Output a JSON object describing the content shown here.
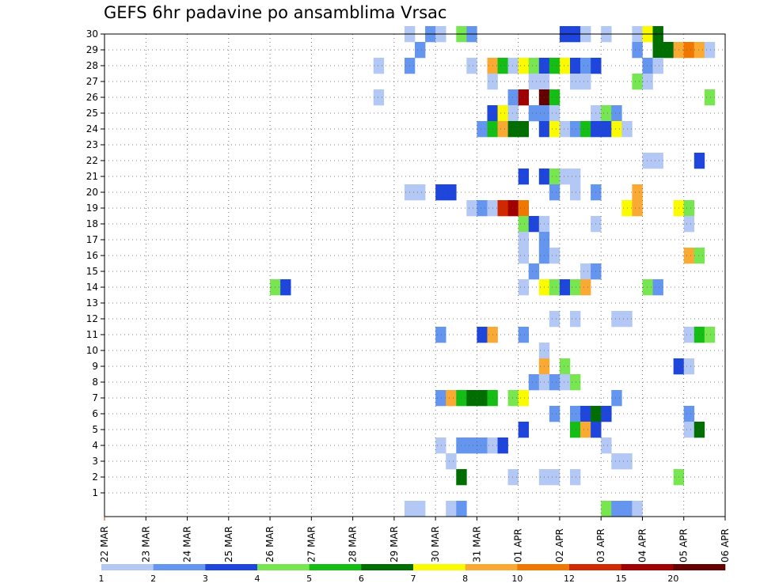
{
  "chart_data": {
    "type": "heatmap",
    "title": "GEFS 6hr padavine po ansamblima Vrsac",
    "y_ticks": [
      "1",
      "2",
      "3",
      "4",
      "5",
      "6",
      "7",
      "8",
      "9",
      "10",
      "11",
      "12",
      "13",
      "14",
      "15",
      "16",
      "17",
      "18",
      "19",
      "20",
      "21",
      "22",
      "23",
      "24",
      "25",
      "26",
      "27",
      "28",
      "29",
      "30"
    ],
    "x_ticks": [
      "22 MAR",
      "23 MAR",
      "24 MAR",
      "25 MAR",
      "26 MAR",
      "27 MAR",
      "28 MAR",
      "29 MAR",
      "30 MAR",
      "31 MAR",
      "01 APR",
      "02 APR",
      "03 APR",
      "04 APR",
      "05 APR",
      "06 APR"
    ],
    "x_range": [
      "22 MAR 00Z",
      "06 APR 00Z"
    ],
    "time_step_hours": 6,
    "member_range": [
      0,
      30
    ],
    "grid": "dotted",
    "colorbar": {
      "ticks": [
        "1",
        "2",
        "3",
        "4",
        "5",
        "6",
        "7",
        "8",
        "10",
        "12",
        "15",
        "20"
      ],
      "colors": [
        "#b4c8f5",
        "#6496f0",
        "#1e46dc",
        "#78e650",
        "#14be14",
        "#006e00",
        "#fafa00",
        "#faaa32",
        "#f07800",
        "#d22800",
        "#a00000",
        "#640000"
      ]
    },
    "cells": [
      {
        "m": 30,
        "d": 29.25,
        "c": 0
      },
      {
        "m": 30,
        "d": 29.75,
        "c": 1
      },
      {
        "m": 30,
        "d": 30,
        "c": 0
      },
      {
        "m": 30,
        "d": 30.5,
        "c": 3
      },
      {
        "m": 30,
        "d": 30.75,
        "c": 1
      },
      {
        "m": 30,
        "d": 33.0,
        "c": 2
      },
      {
        "m": 30,
        "d": 33.25,
        "c": 2
      },
      {
        "m": 30,
        "d": 33.5,
        "c": 0
      },
      {
        "m": 30,
        "d": 34.0,
        "c": 0
      },
      {
        "m": 30,
        "d": 34.75,
        "c": 0
      },
      {
        "m": 30,
        "d": 35.0,
        "c": 6
      },
      {
        "m": 30,
        "d": 35.25,
        "c": 5
      },
      {
        "m": 29,
        "d": 29.5,
        "c": 1
      },
      {
        "m": 29,
        "d": 34.75,
        "c": 1
      },
      {
        "m": 29,
        "d": 35.25,
        "c": 5
      },
      {
        "m": 29,
        "d": 35.5,
        "c": 5
      },
      {
        "m": 29,
        "d": 35.75,
        "c": 7
      },
      {
        "m": 29,
        "d": 36.0,
        "c": 8
      },
      {
        "m": 29,
        "d": 36.25,
        "c": 7
      },
      {
        "m": 29,
        "d": 36.5,
        "c": 0
      },
      {
        "m": 28,
        "d": 28.5,
        "c": 0
      },
      {
        "m": 28,
        "d": 29.25,
        "c": 1
      },
      {
        "m": 28,
        "d": 30.75,
        "c": 0
      },
      {
        "m": 28,
        "d": 31.25,
        "c": 7
      },
      {
        "m": 28,
        "d": 31.5,
        "c": 4
      },
      {
        "m": 28,
        "d": 31.75,
        "c": 0
      },
      {
        "m": 28,
        "d": 32.0,
        "c": 6
      },
      {
        "m": 28,
        "d": 32.25,
        "c": 3
      },
      {
        "m": 28,
        "d": 32.5,
        "c": 2
      },
      {
        "m": 28,
        "d": 32.75,
        "c": 4
      },
      {
        "m": 28,
        "d": 33.0,
        "c": 6
      },
      {
        "m": 28,
        "d": 33.25,
        "c": 2
      },
      {
        "m": 28,
        "d": 33.5,
        "c": 1
      },
      {
        "m": 28,
        "d": 33.75,
        "c": 2
      },
      {
        "m": 28,
        "d": 35.0,
        "c": 1
      },
      {
        "m": 28,
        "d": 35.25,
        "c": 0
      },
      {
        "m": 27,
        "d": 31.25,
        "c": 0
      },
      {
        "m": 27,
        "d": 32.25,
        "c": 0
      },
      {
        "m": 27,
        "d": 32.5,
        "c": 0
      },
      {
        "m": 27,
        "d": 33.25,
        "c": 0
      },
      {
        "m": 27,
        "d": 33.5,
        "c": 0
      },
      {
        "m": 27,
        "d": 34.75,
        "c": 3
      },
      {
        "m": 27,
        "d": 35.0,
        "c": 0
      },
      {
        "m": 26,
        "d": 28.5,
        "c": 0
      },
      {
        "m": 26,
        "d": 31.75,
        "c": 1
      },
      {
        "m": 26,
        "d": 32.0,
        "c": 10
      },
      {
        "m": 26,
        "d": 32.5,
        "c": 11
      },
      {
        "m": 26,
        "d": 32.75,
        "c": 4
      },
      {
        "m": 26,
        "d": 36.5,
        "c": 3
      },
      {
        "m": 25,
        "d": 31.25,
        "c": 2
      },
      {
        "m": 25,
        "d": 31.5,
        "c": 6
      },
      {
        "m": 25,
        "d": 31.75,
        "c": 0
      },
      {
        "m": 25,
        "d": 32.25,
        "c": 1
      },
      {
        "m": 25,
        "d": 32.5,
        "c": 1
      },
      {
        "m": 25,
        "d": 32.75,
        "c": 0
      },
      {
        "m": 25,
        "d": 33.75,
        "c": 0
      },
      {
        "m": 25,
        "d": 34.0,
        "c": 3
      },
      {
        "m": 25,
        "d": 34.25,
        "c": 1
      },
      {
        "m": 24,
        "d": 31.0,
        "c": 1
      },
      {
        "m": 24,
        "d": 31.25,
        "c": 4
      },
      {
        "m": 24,
        "d": 31.5,
        "c": 7
      },
      {
        "m": 24,
        "d": 31.75,
        "c": 5
      },
      {
        "m": 24,
        "d": 32.0,
        "c": 5
      },
      {
        "m": 24,
        "d": 32.5,
        "c": 2
      },
      {
        "m": 24,
        "d": 32.75,
        "c": 6
      },
      {
        "m": 24,
        "d": 33.0,
        "c": 0
      },
      {
        "m": 24,
        "d": 33.25,
        "c": 1
      },
      {
        "m": 24,
        "d": 33.5,
        "c": 4
      },
      {
        "m": 24,
        "d": 33.75,
        "c": 2
      },
      {
        "m": 24,
        "d": 34.0,
        "c": 2
      },
      {
        "m": 24,
        "d": 34.25,
        "c": 6
      },
      {
        "m": 24,
        "d": 34.5,
        "c": 0
      },
      {
        "m": 22,
        "d": 35.0,
        "c": 0
      },
      {
        "m": 22,
        "d": 35.25,
        "c": 0
      },
      {
        "m": 22,
        "d": 36.25,
        "c": 2
      },
      {
        "m": 21,
        "d": 32.0,
        "c": 2
      },
      {
        "m": 21,
        "d": 32.5,
        "c": 2
      },
      {
        "m": 21,
        "d": 32.75,
        "c": 3
      },
      {
        "m": 21,
        "d": 33.0,
        "c": 0
      },
      {
        "m": 21,
        "d": 33.25,
        "c": 0
      },
      {
        "m": 20,
        "d": 29.25,
        "c": 0
      },
      {
        "m": 20,
        "d": 29.5,
        "c": 0
      },
      {
        "m": 20,
        "d": 30.0,
        "c": 2
      },
      {
        "m": 20,
        "d": 30.25,
        "c": 2
      },
      {
        "m": 20,
        "d": 32.75,
        "c": 1
      },
      {
        "m": 20,
        "d": 33.25,
        "c": 0
      },
      {
        "m": 20,
        "d": 33.75,
        "c": 1
      },
      {
        "m": 20,
        "d": 34.75,
        "c": 7
      },
      {
        "m": 19,
        "d": 30.75,
        "c": 0
      },
      {
        "m": 19,
        "d": 31.0,
        "c": 1
      },
      {
        "m": 19,
        "d": 31.25,
        "c": 0
      },
      {
        "m": 19,
        "d": 31.5,
        "c": 9
      },
      {
        "m": 19,
        "d": 31.75,
        "c": 10
      },
      {
        "m": 19,
        "d": 32.0,
        "c": 8
      },
      {
        "m": 19,
        "d": 34.5,
        "c": 6
      },
      {
        "m": 19,
        "d": 34.75,
        "c": 7
      },
      {
        "m": 19,
        "d": 35.75,
        "c": 6
      },
      {
        "m": 19,
        "d": 36.0,
        "c": 3
      },
      {
        "m": 18,
        "d": 32.0,
        "c": 3
      },
      {
        "m": 18,
        "d": 32.25,
        "c": 2
      },
      {
        "m": 18,
        "d": 32.5,
        "c": 0
      },
      {
        "m": 18,
        "d": 33.75,
        "c": 0
      },
      {
        "m": 18,
        "d": 36.0,
        "c": 0
      },
      {
        "m": 17,
        "d": 32.0,
        "c": 0
      },
      {
        "m": 17,
        "d": 32.5,
        "c": 1
      },
      {
        "m": 16,
        "d": 32.0,
        "c": 0
      },
      {
        "m": 16,
        "d": 32.5,
        "c": 1
      },
      {
        "m": 16,
        "d": 32.75,
        "c": 0
      },
      {
        "m": 16,
        "d": 36.0,
        "c": 7
      },
      {
        "m": 16,
        "d": 36.25,
        "c": 3
      },
      {
        "m": 15,
        "d": 32.25,
        "c": 1
      },
      {
        "m": 15,
        "d": 33.5,
        "c": 0
      },
      {
        "m": 15,
        "d": 33.75,
        "c": 1
      },
      {
        "m": 14,
        "d": 26.0,
        "c": 3
      },
      {
        "m": 14,
        "d": 26.25,
        "c": 2
      },
      {
        "m": 14,
        "d": 32.0,
        "c": 0
      },
      {
        "m": 14,
        "d": 32.5,
        "c": 6
      },
      {
        "m": 14,
        "d": 32.75,
        "c": 3
      },
      {
        "m": 14,
        "d": 33.0,
        "c": 2
      },
      {
        "m": 14,
        "d": 33.25,
        "c": 3
      },
      {
        "m": 14,
        "d": 33.5,
        "c": 7
      },
      {
        "m": 14,
        "d": 35.0,
        "c": 3
      },
      {
        "m": 14,
        "d": 35.25,
        "c": 1
      },
      {
        "m": 12,
        "d": 32.75,
        "c": 0
      },
      {
        "m": 12,
        "d": 33.25,
        "c": 0
      },
      {
        "m": 12,
        "d": 34.25,
        "c": 0
      },
      {
        "m": 12,
        "d": 34.5,
        "c": 0
      },
      {
        "m": 11,
        "d": 30.0,
        "c": 1
      },
      {
        "m": 11,
        "d": 31.0,
        "c": 2
      },
      {
        "m": 11,
        "d": 31.25,
        "c": 7
      },
      {
        "m": 11,
        "d": 32.0,
        "c": 1
      },
      {
        "m": 11,
        "d": 36.0,
        "c": 0
      },
      {
        "m": 11,
        "d": 36.25,
        "c": 4
      },
      {
        "m": 11,
        "d": 36.5,
        "c": 3
      },
      {
        "m": 10,
        "d": 32.5,
        "c": 0
      },
      {
        "m": 9,
        "d": 32.5,
        "c": 7
      },
      {
        "m": 9,
        "d": 33.0,
        "c": 3
      },
      {
        "m": 9,
        "d": 35.75,
        "c": 2
      },
      {
        "m": 9,
        "d": 36.0,
        "c": 0
      },
      {
        "m": 8,
        "d": 32.25,
        "c": 1
      },
      {
        "m": 8,
        "d": 32.5,
        "c": 0
      },
      {
        "m": 8,
        "d": 32.75,
        "c": 1
      },
      {
        "m": 8,
        "d": 33.0,
        "c": 0
      },
      {
        "m": 8,
        "d": 33.25,
        "c": 3
      },
      {
        "m": 7,
        "d": 30.0,
        "c": 1
      },
      {
        "m": 7,
        "d": 30.25,
        "c": 7
      },
      {
        "m": 7,
        "d": 30.5,
        "c": 4
      },
      {
        "m": 7,
        "d": 30.75,
        "c": 5
      },
      {
        "m": 7,
        "d": 31.0,
        "c": 5
      },
      {
        "m": 7,
        "d": 31.25,
        "c": 4
      },
      {
        "m": 7,
        "d": 31.75,
        "c": 3
      },
      {
        "m": 7,
        "d": 32.0,
        "c": 6
      },
      {
        "m": 7,
        "d": 34.25,
        "c": 1
      },
      {
        "m": 6,
        "d": 32.75,
        "c": 1
      },
      {
        "m": 6,
        "d": 33.25,
        "c": 1
      },
      {
        "m": 6,
        "d": 33.5,
        "c": 2
      },
      {
        "m": 6,
        "d": 33.75,
        "c": 5
      },
      {
        "m": 6,
        "d": 34.0,
        "c": 2
      },
      {
        "m": 6,
        "d": 36.0,
        "c": 1
      },
      {
        "m": 5,
        "d": 32.0,
        "c": 2
      },
      {
        "m": 5,
        "d": 33.25,
        "c": 4
      },
      {
        "m": 5,
        "d": 33.5,
        "c": 7
      },
      {
        "m": 5,
        "d": 33.75,
        "c": 2
      },
      {
        "m": 5,
        "d": 36.0,
        "c": 0
      },
      {
        "m": 5,
        "d": 36.25,
        "c": 5
      },
      {
        "m": 4,
        "d": 30.0,
        "c": 0
      },
      {
        "m": 4,
        "d": 30.5,
        "c": 1
      },
      {
        "m": 4,
        "d": 30.75,
        "c": 1
      },
      {
        "m": 4,
        "d": 31.0,
        "c": 1
      },
      {
        "m": 4,
        "d": 31.25,
        "c": 0
      },
      {
        "m": 4,
        "d": 31.5,
        "c": 2
      },
      {
        "m": 4,
        "d": 34.0,
        "c": 0
      },
      {
        "m": 3,
        "d": 30.25,
        "c": 0
      },
      {
        "m": 3,
        "d": 34.25,
        "c": 0
      },
      {
        "m": 3,
        "d": 34.5,
        "c": 0
      },
      {
        "m": 2,
        "d": 30.5,
        "c": 5
      },
      {
        "m": 2,
        "d": 31.75,
        "c": 0
      },
      {
        "m": 2,
        "d": 32.5,
        "c": 0
      },
      {
        "m": 2,
        "d": 32.75,
        "c": 0
      },
      {
        "m": 2,
        "d": 33.25,
        "c": 0
      },
      {
        "m": 2,
        "d": 35.75,
        "c": 3
      },
      {
        "m": 0,
        "d": 29.25,
        "c": 0
      },
      {
        "m": 0,
        "d": 29.5,
        "c": 0
      },
      {
        "m": 0,
        "d": 30.25,
        "c": 0
      },
      {
        "m": 0,
        "d": 30.5,
        "c": 1
      },
      {
        "m": 0,
        "d": 34.0,
        "c": 3
      },
      {
        "m": 0,
        "d": 34.25,
        "c": 1
      },
      {
        "m": 0,
        "d": 34.5,
        "c": 1
      },
      {
        "m": 0,
        "d": 34.75,
        "c": 0
      }
    ]
  }
}
